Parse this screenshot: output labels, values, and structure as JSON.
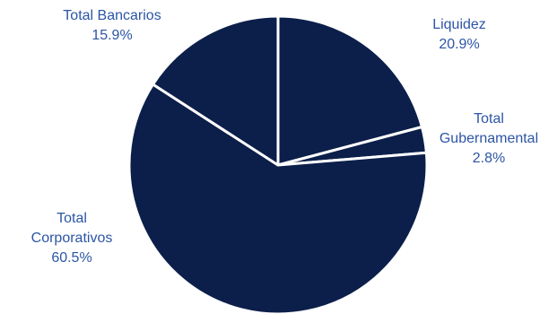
{
  "chart_data": {
    "type": "pie",
    "categories": [
      "Liquidez",
      "Total Gubernamental",
      "Total Corporativos",
      "Total Bancarios"
    ],
    "values": [
      20.9,
      2.8,
      60.5,
      15.9
    ],
    "labels": [
      {
        "lines": [
          "Liquidez"
        ],
        "value": "20.9%"
      },
      {
        "lines": [
          "Total",
          "Gubernamental"
        ],
        "value": "2.8%"
      },
      {
        "lines": [
          "Total",
          "Corporativos"
        ],
        "value": "60.5%"
      },
      {
        "lines": [
          "Total Bancarios"
        ],
        "value": "15.9%"
      }
    ],
    "colors": {
      "slice_fill": "#0c1f4a",
      "slice_border": "#ffffff",
      "label_text": "#2c55a5"
    },
    "start_angle": "12 o'clock",
    "direction": "clockwise",
    "legend": "none"
  }
}
